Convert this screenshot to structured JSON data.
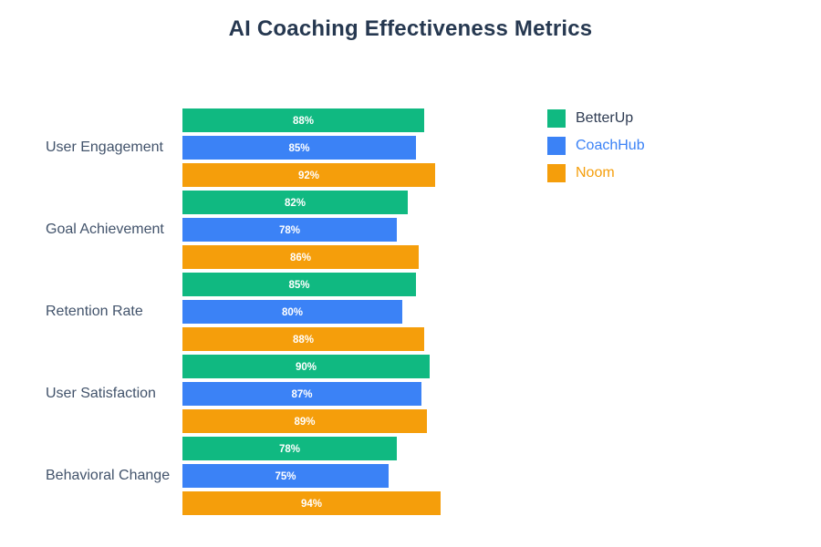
{
  "title": "AI Coaching Effectiveness Metrics",
  "colors": {
    "background": "#FFFFFF",
    "title_text": "#263850",
    "category_label_text": "#42536B",
    "bar_value_text": "#FFFFFF",
    "betterup_green": "#10B981",
    "coachhub_blue": "#3B82F6",
    "noom_orange": "#F59E0B"
  },
  "chart_data": {
    "type": "bar",
    "orientation": "horizontal",
    "title": "AI Coaching Effectiveness Metrics",
    "xlabel": "",
    "ylabel": "",
    "unit": "%",
    "xlim": [
      0,
      100
    ],
    "grid": false,
    "axes_visible": false,
    "value_labels": true,
    "legend_position": "right",
    "categories": [
      "User Engagement",
      "Goal Achievement",
      "Retention Rate",
      "User Satisfaction",
      "Behavioral Change"
    ],
    "series": [
      {
        "name": "BetterUp",
        "color": "#10B981",
        "legend_text_color": "#2E3B52",
        "values": [
          88,
          82,
          85,
          90,
          78
        ],
        "labels": [
          "88%",
          "82%",
          "85%",
          "90%",
          "78%"
        ]
      },
      {
        "name": "CoachHub",
        "color": "#3B82F6",
        "legend_text_color": "#3B82F6",
        "values": [
          85,
          78,
          80,
          87,
          75
        ],
        "labels": [
          "85%",
          "78%",
          "80%",
          "87%",
          "75%"
        ]
      },
      {
        "name": "Noom",
        "color": "#F59E0B",
        "legend_text_color": "#F59E0B",
        "values": [
          92,
          86,
          88,
          89,
          94
        ],
        "labels": [
          "92%",
          "86%",
          "88%",
          "89%",
          "94%"
        ]
      }
    ]
  }
}
